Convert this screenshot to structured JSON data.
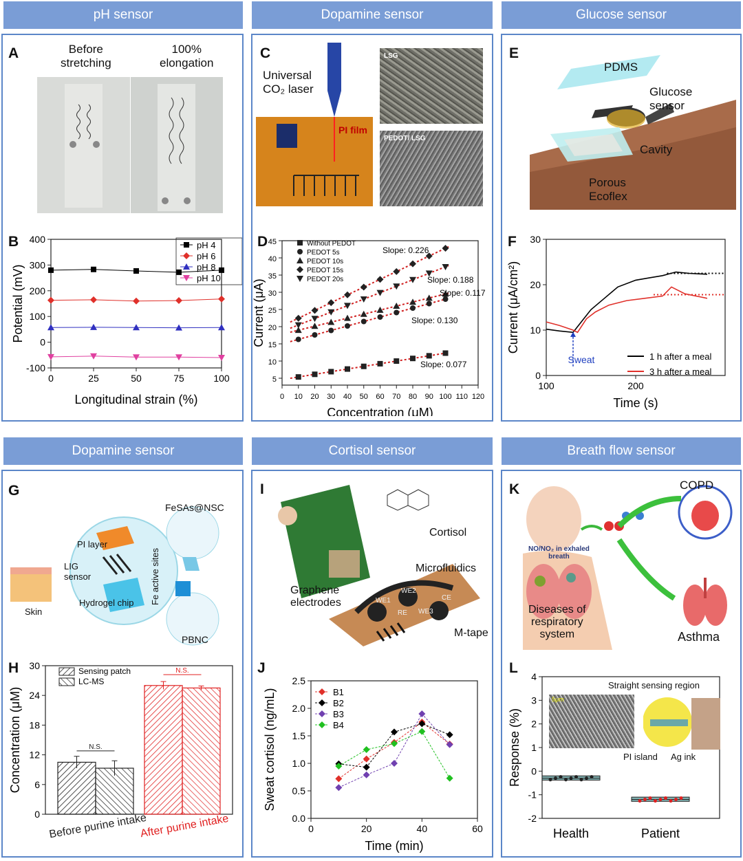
{
  "headers": [
    "pH sensor",
    "Dopamine sensor",
    "Glucose sensor",
    "Dopamine sensor",
    "Cortisol sensor",
    "Breath flow sensor"
  ],
  "panelA": {
    "label": "A",
    "before": "Before\nstretching",
    "after": "100%\nelongation"
  },
  "panelC": {
    "label": "C",
    "laser": "Universal\nCO₂ laser",
    "pi": "PI film",
    "lsg": "LSG",
    "pedot": "PEDOT/ LSG"
  },
  "panelE": {
    "label": "E",
    "pdms": "PDMS",
    "glucose": "Glucose\nsensor",
    "cavity": "Cavity",
    "porous": "Porous\nEcoflex"
  },
  "panelG": {
    "label": "G",
    "fesas": "FeSAs@NSC",
    "pi": "PI layer",
    "lig": "LIG\nsensor",
    "hydrogel": "Hydrogel chip",
    "skin": "Skin",
    "fe": "Fe active sites",
    "pbnc": "PBNC"
  },
  "panelI": {
    "label": "I",
    "cortisol": "Cortisol",
    "graphene": "Graphene\nelectrodes",
    "micro": "Microfluidics",
    "mtape": "M-tape",
    "we1": "WE1",
    "we2": "WE2",
    "we3": "WE3",
    "re": "RE",
    "ce": "CE"
  },
  "panelK": {
    "label": "K",
    "copd": "COPD",
    "no": "NO/NO₂ in exhaled\nbreath",
    "diseases": "Diseases of\nrespiratory\nsystem",
    "asthma": "Asthma"
  },
  "panelL_text": {
    "straight": "Straight sensing region",
    "pi": "PI island",
    "ag": "Ag ink",
    "scale": "5μm"
  },
  "chart_data": [
    {
      "id": "B",
      "type": "line",
      "title": "",
      "xlabel": "Longitudinal strain (%)",
      "ylabel": "Potential (mV)",
      "xlim": [
        0,
        100
      ],
      "ylim": [
        -100,
        400
      ],
      "xticks": [
        0,
        25,
        50,
        75,
        100
      ],
      "yticks": [
        -100,
        0,
        100,
        200,
        300,
        400
      ],
      "x": [
        0,
        25,
        50,
        75,
        100
      ],
      "series": [
        {
          "name": "pH 4",
          "color": "#000000",
          "marker": "square",
          "values": [
            280,
            283,
            277,
            272,
            280
          ]
        },
        {
          "name": "pH 6",
          "color": "#e0302a",
          "marker": "diamond",
          "values": [
            163,
            165,
            160,
            162,
            168
          ]
        },
        {
          "name": "pH 8",
          "color": "#3030c0",
          "marker": "triangle",
          "values": [
            57,
            58,
            57,
            56,
            57
          ]
        },
        {
          "name": "pH 10",
          "color": "#e040a0",
          "marker": "tri-down",
          "values": [
            -57,
            -54,
            -58,
            -58,
            -60
          ]
        }
      ]
    },
    {
      "id": "D",
      "type": "scatter",
      "xlabel": "Concentration (μM)",
      "ylabel": "Current (μA)",
      "xlim": [
        0,
        120
      ],
      "ylim": [
        3,
        45
      ],
      "xticks": [
        0,
        10,
        20,
        30,
        40,
        50,
        60,
        70,
        80,
        90,
        100,
        110,
        120
      ],
      "yticks": [
        5,
        10,
        15,
        20,
        25,
        30,
        35,
        40,
        45
      ],
      "series": [
        {
          "name": "Without PEDOT",
          "marker": "square",
          "intercept": 4.6,
          "slope": 0.077,
          "label": "Slope: 0.077"
        },
        {
          "name": "PEDOT 5s",
          "marker": "circle",
          "intercept": 15.0,
          "slope": 0.13,
          "label": "Slope: 0.130"
        },
        {
          "name": "PEDOT 10s",
          "marker": "triangle",
          "intercept": 17.8,
          "slope": 0.117,
          "label": "Slope: 0.117"
        },
        {
          "name": "PEDOT 15s",
          "marker": "diamond",
          "intercept": 20.2,
          "slope": 0.226,
          "label": "Slope: 0.226"
        },
        {
          "name": "PEDOT 20s",
          "marker": "tri-down",
          "intercept": 18.6,
          "slope": 0.188,
          "label": "Slope: 0.188"
        }
      ]
    },
    {
      "id": "F",
      "type": "line",
      "xlabel": "Time (s)",
      "ylabel": "Current (μA/cm²)",
      "xlim": [
        100,
        300
      ],
      "ylim": [
        0,
        30
      ],
      "xticks": [
        100,
        200
      ],
      "yticks": [
        0,
        10,
        20,
        30
      ],
      "annotation": "Sweat",
      "series": [
        {
          "name": "1 h after a meal",
          "color": "#000000",
          "points": [
            [
              100,
              10.2
            ],
            [
              115,
              9.8
            ],
            [
              130,
              9.5
            ],
            [
              140,
              12
            ],
            [
              150,
              14.5
            ],
            [
              165,
              17
            ],
            [
              180,
              19.5
            ],
            [
              200,
              21
            ],
            [
              215,
              21.5
            ],
            [
              230,
              22
            ],
            [
              245,
              22.8
            ],
            [
              260,
              22.5
            ],
            [
              280,
              22.3
            ]
          ],
          "plateau": 22.5
        },
        {
          "name": "3 h after a meal",
          "color": "#e0302a",
          "points": [
            [
              100,
              11.8
            ],
            [
              115,
              11
            ],
            [
              130,
              10
            ],
            [
              135,
              9.5
            ],
            [
              145,
              12.5
            ],
            [
              155,
              14
            ],
            [
              170,
              15.5
            ],
            [
              190,
              16.5
            ],
            [
              210,
              17
            ],
            [
              230,
              17.5
            ],
            [
              240,
              19.5
            ],
            [
              255,
              18
            ],
            [
              280,
              17
            ]
          ],
          "plateau": 17.8
        }
      ]
    },
    {
      "id": "H",
      "type": "bar",
      "ylabel": "Concentration (μM)",
      "ylim": [
        0,
        30
      ],
      "yticks": [
        0,
        6,
        12,
        18,
        24,
        30
      ],
      "categories": [
        "Before purine intake",
        "After purine intake"
      ],
      "series": [
        {
          "name": "Sensing patch",
          "values": [
            10.5,
            26
          ]
        },
        {
          "name": "LC-MS",
          "values": [
            9.3,
            25.5
          ]
        }
      ],
      "errors": [
        [
          1.2,
          1.5
        ],
        [
          0.8,
          0.4
        ]
      ],
      "annotations": [
        "N.S.",
        "N.S."
      ]
    },
    {
      "id": "J",
      "type": "line",
      "xlabel": "Time (min)",
      "ylabel": "Sweat cortisol (ng/mL)",
      "xlim": [
        0,
        60
      ],
      "ylim": [
        0,
        2.5
      ],
      "xticks": [
        0,
        20,
        40,
        60
      ],
      "yticks": [
        0.0,
        0.5,
        1.0,
        1.5,
        2.0,
        2.5
      ],
      "x": [
        10,
        20,
        30,
        40,
        50
      ],
      "series": [
        {
          "name": "B1",
          "color": "#e0302a",
          "values": [
            0.72,
            1.08,
            1.38,
            1.75,
            1.35
          ]
        },
        {
          "name": "B2",
          "color": "#000000",
          "values": [
            0.99,
            0.93,
            1.57,
            1.72,
            1.52
          ]
        },
        {
          "name": "B3",
          "color": "#7040b0",
          "values": [
            0.56,
            0.79,
            1.0,
            1.9,
            1.34
          ]
        },
        {
          "name": "B4",
          "color": "#20c020",
          "values": [
            0.95,
            1.25,
            1.36,
            1.58,
            0.73
          ]
        }
      ]
    },
    {
      "id": "L",
      "type": "box",
      "ylabel": "Response (%)",
      "ylim": [
        -2,
        4
      ],
      "yticks": [
        -2,
        -1,
        0,
        1,
        2,
        3,
        4
      ],
      "categories": [
        "Health",
        "Patient"
      ],
      "values": [
        {
          "median": -0.3,
          "q1": -0.38,
          "q3": -0.2
        },
        {
          "median": -1.2,
          "q1": -1.28,
          "q3": -1.1
        }
      ]
    }
  ]
}
